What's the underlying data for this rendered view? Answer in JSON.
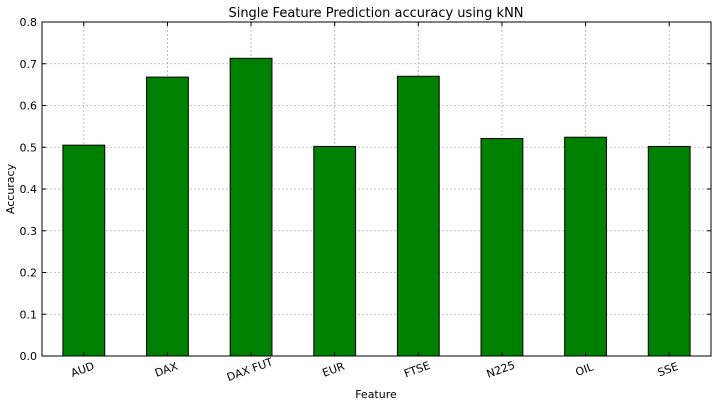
{
  "chart_data": {
    "type": "bar",
    "title": "Single Feature Prediction accuracy using kNN",
    "xlabel": "Feature",
    "ylabel": "Accuracy",
    "categories": [
      "AUD",
      "DAX",
      "DAX FUT",
      "EUR",
      "FTSE",
      "N225",
      "OIL",
      "SSE"
    ],
    "values": [
      0.505,
      0.668,
      0.713,
      0.502,
      0.67,
      0.521,
      0.524,
      0.502
    ],
    "ylim": [
      0.0,
      0.8
    ],
    "yticks": [
      "0.0",
      "0.1",
      "0.2",
      "0.3",
      "0.4",
      "0.5",
      "0.6",
      "0.7",
      "0.8"
    ],
    "grid": true,
    "colors": {
      "bar": "#008000",
      "edge": "#000000"
    }
  }
}
